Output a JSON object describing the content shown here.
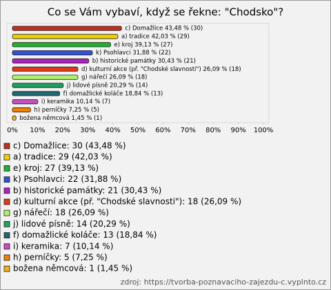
{
  "chart_data": {
    "type": "bar",
    "orientation": "horizontal",
    "title": "Co se Vám vybaví, když se řekne: \"Chodsko\"?",
    "categories": [
      "c) Domažlice",
      "a) tradice",
      "e) kroj",
      "k) Psohlavci",
      "b) historické památky",
      "d) kulturní akce (př. \"Chodské slavnosti\")",
      "g) nářečí",
      "j) lidové písně",
      "f) domažlické koláče",
      "i) keramika",
      "h) perníčky",
      "božena němcová"
    ],
    "values": [
      43.48,
      42.03,
      39.13,
      31.88,
      30.43,
      26.09,
      26.09,
      20.29,
      18.84,
      10.14,
      7.25,
      1.45
    ],
    "value_labels": [
      "c) Domažlice 43,48 % (30)",
      "a) tradice 42,03 % (29)",
      "e) kroj 39,13 % (27)",
      "k) Psohlavci 31,88 % (22)",
      "b) historické památky 30,43 % (21)",
      "d) kulturní akce (př. \"Chodské slavnosti\") 26,09 % (18)",
      "g) nářečí 26,09 % (18)",
      "j) lidové písně 20,29 % (14)",
      "f) domažlické koláče 18,84 % (13)",
      "i) keramika 10,14 % (7)",
      "h) perníčky 7,25 % (5)",
      "božena němcová 1,45 % (1)"
    ],
    "legend": [
      "c) Domažlice: 30 (43,48 %)",
      "a) tradice: 29 (42,03 %)",
      "e) kroj: 27 (39,13 %)",
      "k) Psohlavci: 22 (31,88 %)",
      "b) historické památky: 21 (30,43 %)",
      "d) kulturní akce (př. \"Chodské slavnosti\"): 18 (26,09 %)",
      "g) nářečí: 18 (26,09 %)",
      "j) lidové písně: 14 (20,29 %)",
      "f) domažlické koláče: 13 (18,84 %)",
      "i) keramika: 7 (10,14 %)",
      "h) perníčky: 5 (7,25 %)",
      "božena němcová: 1 (1,45 %)"
    ],
    "colors": [
      "#c0301f",
      "#f0d000",
      "#20b030",
      "#3050e0",
      "#b020c0",
      "#e03818",
      "#b0f070",
      "#20a060",
      "#206870",
      "#c050c0",
      "#f08000",
      "#f0b020"
    ],
    "xlim": [
      0,
      100
    ],
    "xticks": [
      {
        "value": 0,
        "label": "0%"
      },
      {
        "value": 10,
        "label": "10%"
      },
      {
        "value": 20,
        "label": "20%"
      },
      {
        "value": 30,
        "label": "30%"
      },
      {
        "value": 40,
        "label": "40%"
      },
      {
        "value": 50,
        "label": "50%"
      },
      {
        "value": 60,
        "label": "60%"
      },
      {
        "value": 70,
        "label": "70%"
      },
      {
        "value": 80,
        "label": "80%"
      },
      {
        "value": 90,
        "label": "90%"
      },
      {
        "value": 100,
        "label": "100%"
      }
    ],
    "source": "zdroj: https://tvorba-poznavaciho-zajezdu-c.vyplnto.cz"
  }
}
